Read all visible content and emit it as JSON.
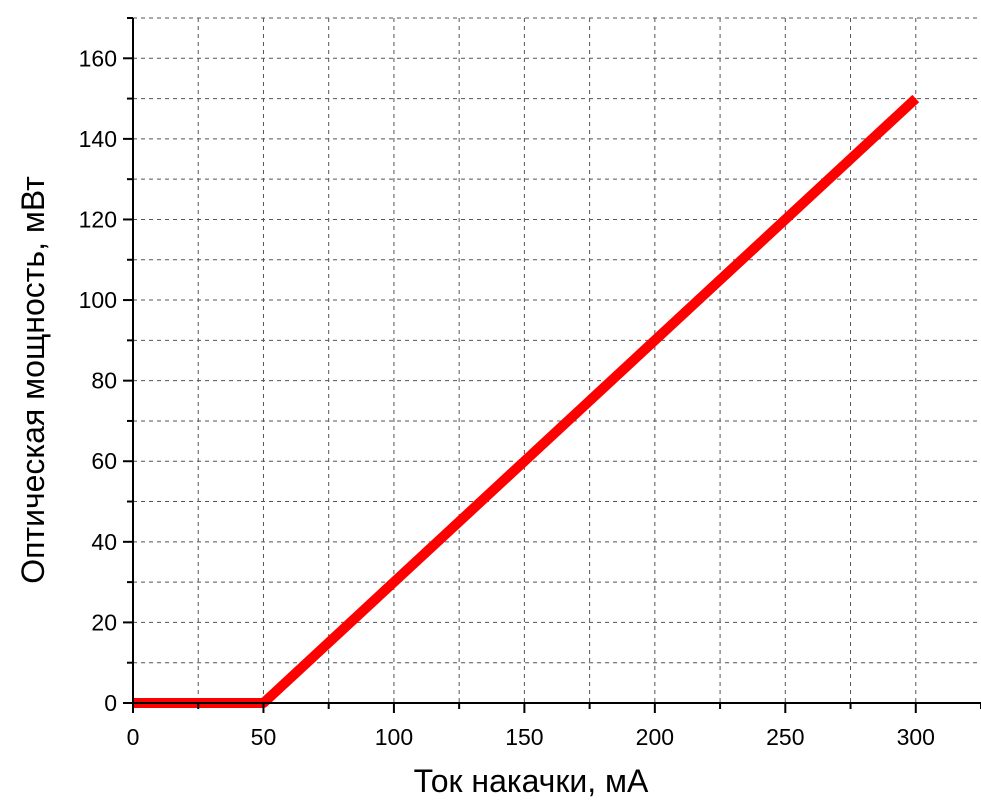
{
  "chart_data": {
    "type": "line",
    "title": "",
    "xlabel": "Ток накачки, мА",
    "ylabel": "Оптическая мощность, мВт",
    "xlim": [
      0,
      325
    ],
    "ylim": [
      0,
      170
    ],
    "x_ticks": [
      0,
      50,
      100,
      150,
      200,
      250,
      300
    ],
    "x_tick_labels": [
      "0",
      "50",
      "100",
      "150",
      "200",
      "250",
      "300"
    ],
    "y_ticks": [
      0,
      20,
      40,
      60,
      80,
      100,
      120,
      140,
      160
    ],
    "y_tick_labels": [
      "0",
      "20",
      "40",
      "60",
      "80",
      "100",
      "120",
      "140",
      "160"
    ],
    "x_minor_step": 25,
    "y_minor_step": 10,
    "grid": true,
    "grid_style": "dashed",
    "legend": "none",
    "series": [
      {
        "color": "#ff0000",
        "x": [
          0,
          50,
          300
        ],
        "y": [
          0,
          0,
          150
        ]
      }
    ]
  }
}
